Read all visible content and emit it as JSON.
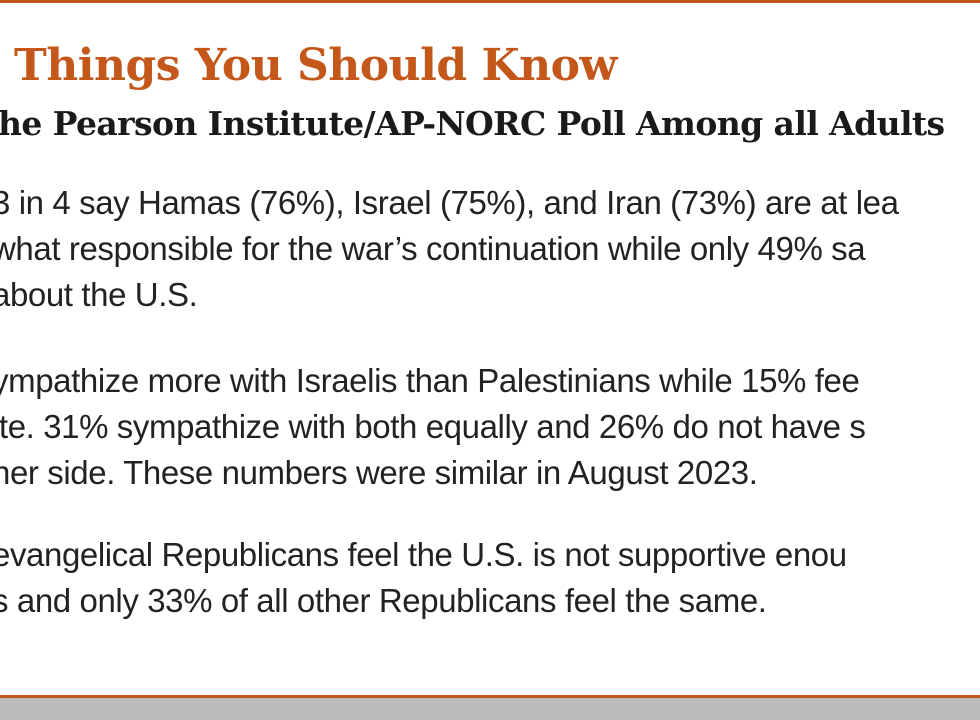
{
  "title": "Things You Should Know",
  "subtitle": "he Pearson Institute/AP-NORC Poll Among all Adults",
  "bullets": [
    {
      "lines": [
        "3 in 4 say Hamas (76%), Israel (75%), and Iran (73%) are at lea",
        "what responsible for the war’s continuation while only 49% sa",
        "about the U.S."
      ]
    },
    {
      "lines": [
        "ympathize more with Israelis than Palestinians while 15% fee",
        "ite. 31% sympathize with both equally and 26% do not have s",
        "her side. These numbers were similar in August 2023."
      ]
    },
    {
      "lines": [
        "evangelical Republicans feel the U.S. is not supportive enou",
        "s and only 33% of all other Republicans feel the same."
      ]
    }
  ],
  "colors": {
    "accent": "#c4581b",
    "text": "#222222",
    "footer": "#bcbcbc"
  }
}
